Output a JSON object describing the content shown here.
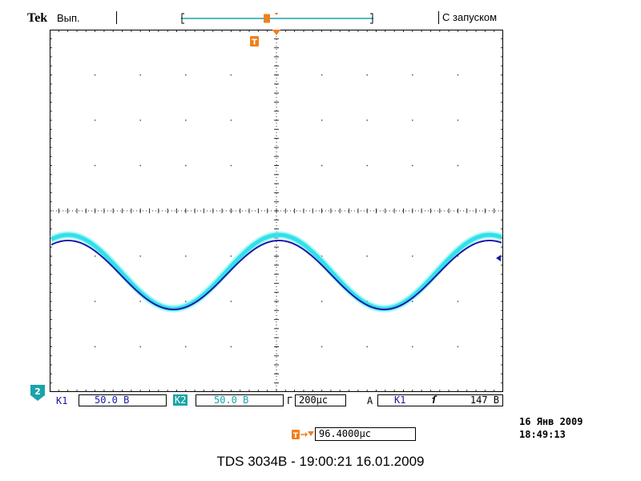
{
  "header": {
    "brand": "Tek",
    "acq_state": "Вып.",
    "trigger_mode": "С запуском"
  },
  "markers": {
    "trigger_position_glyph": "T",
    "channel_marker": "2"
  },
  "channels": {
    "ch1_label": "К1",
    "ch1_scale": "50.0 В",
    "ch2_label": "К2",
    "ch2_scale": "50.0 В"
  },
  "timebase": {
    "label": "Г",
    "value": "200μс"
  },
  "trigger": {
    "mode_label": "А",
    "source": "К1",
    "slope_glyph": "ſ",
    "level": "147 В"
  },
  "delay": {
    "value": "96.4000μс"
  },
  "datetime": {
    "date": "16 Янв  2009",
    "time": "18:49:13"
  },
  "footer": {
    "caption": "TDS 3034B - 19:00:21   16.01.2009"
  },
  "colors": {
    "ch1_trace": "#1a1aa8",
    "ch2_trace": "#33e0e8",
    "ch2_badge": "#1aa3a8",
    "trigger_marker": "#f07f1d",
    "grid": "#000000"
  }
}
